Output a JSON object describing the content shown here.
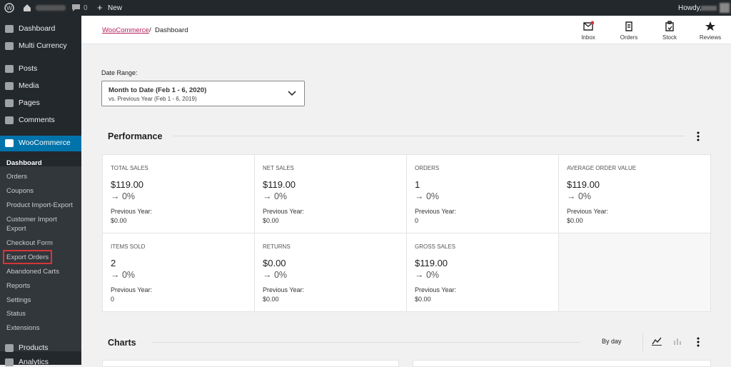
{
  "admin_bar": {
    "comments": "0",
    "new": "New",
    "howdy": "Howdy,"
  },
  "sidebar": {
    "top": [
      "Dashboard",
      "Multi Currency",
      "Posts",
      "Media",
      "Pages",
      "Comments"
    ],
    "active": "WooCommerce",
    "submenu": [
      "Dashboard",
      "Orders",
      "Coupons",
      "Product Import-Export",
      "Customer Import Export",
      "Checkout Form",
      "Export Orders",
      "Abandoned Carts",
      "Reports",
      "Settings",
      "Status",
      "Extensions"
    ],
    "bottom": [
      "Products",
      "Analytics"
    ]
  },
  "header": {
    "breadcrumb_link": "WooCommerce",
    "separator": "/",
    "breadcrumb_current": "Dashboard",
    "actions": [
      "Inbox",
      "Orders",
      "Stock",
      "Reviews"
    ]
  },
  "date_range": {
    "label": "Date Range:",
    "primary": "Month to Date (Feb 1 - 6, 2020)",
    "secondary": "vs. Previous Year (Feb 1 - 6, 2019)"
  },
  "performance": {
    "title": "Performance",
    "tiles": [
      {
        "label": "TOTAL SALES",
        "value": "$119.00",
        "change": "→ 0%",
        "previous_label": "Previous Year:",
        "previous": "$0.00"
      },
      {
        "label": "NET SALES",
        "value": "$119.00",
        "change": "→ 0%",
        "previous_label": "Previous Year:",
        "previous": "$0.00"
      },
      {
        "label": "ORDERS",
        "value": "1",
        "change": "→ 0%",
        "previous_label": "Previous Year:",
        "previous": "0"
      },
      {
        "label": "AVERAGE ORDER VALUE",
        "value": "$119.00",
        "change": "→ 0%",
        "previous_label": "Previous Year:",
        "previous": "$0.00"
      },
      {
        "label": "ITEMS SOLD",
        "value": "2",
        "change": "→ 0%",
        "previous_label": "Previous Year:",
        "previous": "0"
      },
      {
        "label": "RETURNS",
        "value": "$0.00",
        "change": "→ 0%",
        "previous_label": "Previous Year:",
        "previous": "$0.00"
      },
      {
        "label": "GROSS SALES",
        "value": "$119.00",
        "change": "→ 0%",
        "previous_label": "Previous Year:",
        "previous": "$0.00"
      }
    ]
  },
  "charts": {
    "title": "Charts",
    "interval": "By day"
  }
}
